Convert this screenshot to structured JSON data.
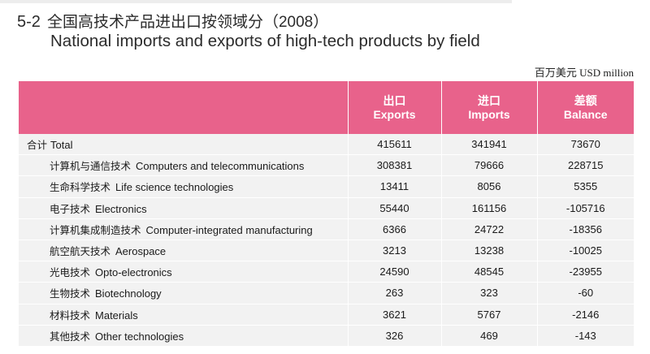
{
  "title": {
    "number": "5-2",
    "cn": "全国高技术产品进出口按领域分",
    "year": "（2008）",
    "en": "National imports and exports of high-tech products by field"
  },
  "unit": "百万美元 USD  million",
  "columns": [
    {
      "cn": "出口",
      "en": "Exports"
    },
    {
      "cn": "进口",
      "en": "Imports"
    },
    {
      "cn": "差额",
      "en": "Balance"
    }
  ],
  "rows": [
    {
      "cn": "合计",
      "en": "Total",
      "exports": "415611",
      "imports": "341941",
      "balance": "73670"
    },
    {
      "cn": "计算机与通信技术",
      "en": "Computers and telecommunications",
      "exports": "308381",
      "imports": "79666",
      "balance": "228715"
    },
    {
      "cn": "生命科学技术",
      "en": "Life science technologies",
      "exports": "13411",
      "imports": "8056",
      "balance": "5355"
    },
    {
      "cn": "电子技术",
      "en": "Electronics",
      "exports": "55440",
      "imports": "161156",
      "balance": "-105716"
    },
    {
      "cn": "计算机集成制造技术",
      "en": "Computer-integrated manufacturing",
      "exports": "6366",
      "imports": "24722",
      "balance": "-18356"
    },
    {
      "cn": "航空航天技术",
      "en": "Aerospace",
      "exports": "3213",
      "imports": "13238",
      "balance": "-10025"
    },
    {
      "cn": "光电技术",
      "en": "Opto-electronics",
      "exports": "24590",
      "imports": "48545",
      "balance": "-23955"
    },
    {
      "cn": "生物技术",
      "en": "Biotechnology",
      "exports": "263",
      "imports": "323",
      "balance": "-60"
    },
    {
      "cn": "材料技术",
      "en": "Materials",
      "exports": "3621",
      "imports": "5767",
      "balance": "-2146"
    },
    {
      "cn": "其他技术",
      "en": "Other technologies",
      "exports": "326",
      "imports": "469",
      "balance": "-143"
    }
  ]
}
